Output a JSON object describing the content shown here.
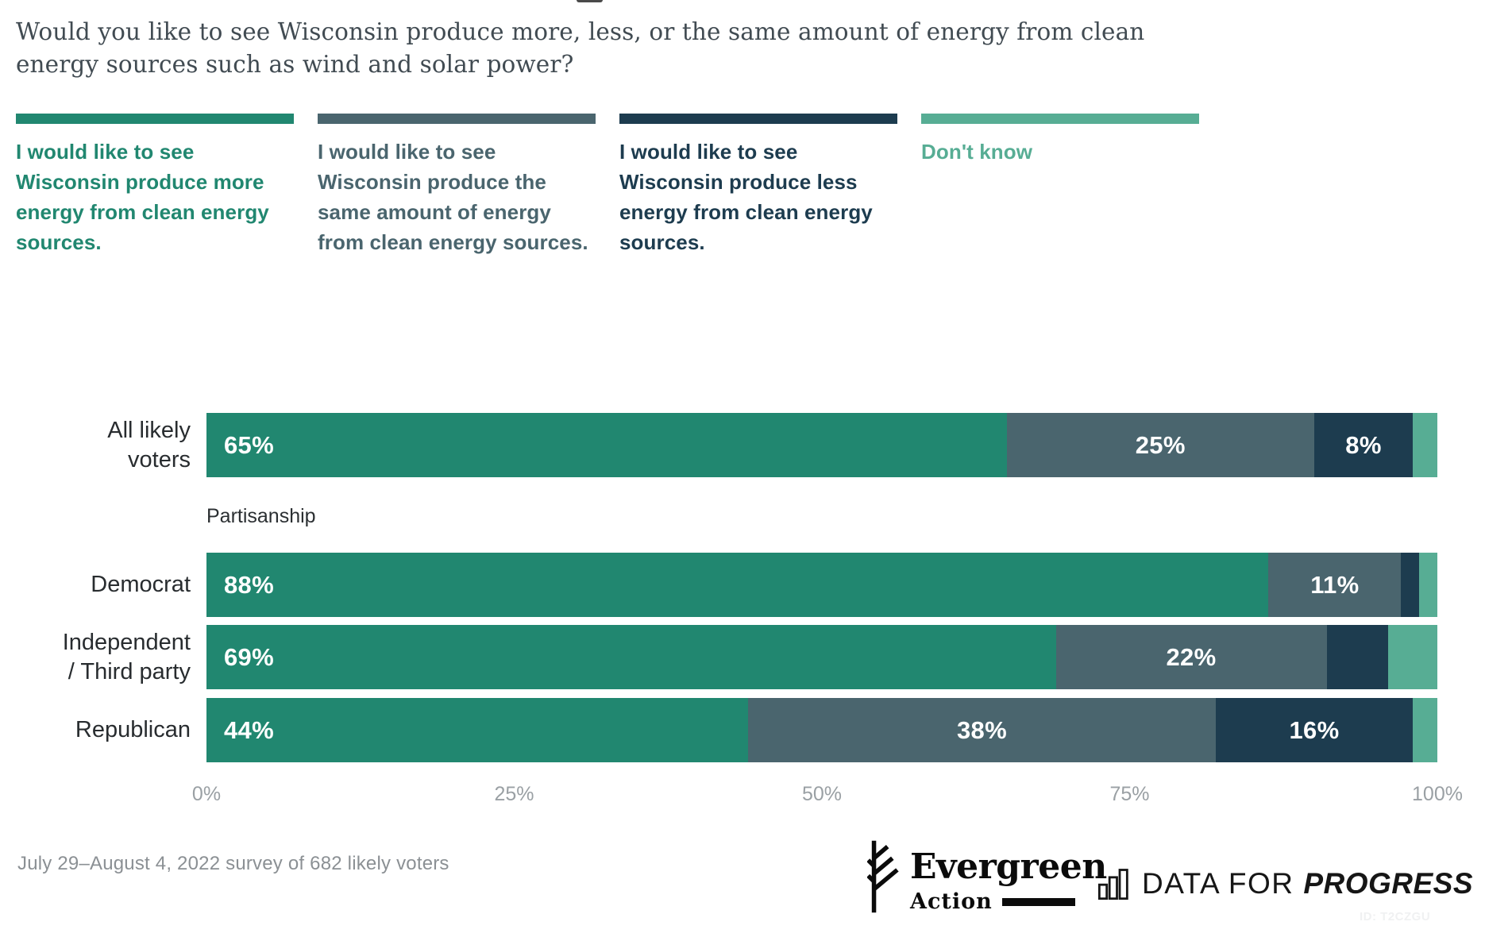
{
  "question": "Would you like to see Wisconsin produce more, less, or the same amount of energy from clean energy sources such as wind and solar power?",
  "legend": [
    {
      "label": "I would like to see Wisconsin produce more energy from clean energy sources.",
      "color": "#218770"
    },
    {
      "label": "I would like to see Wisconsin produce the same amount of energy from clean energy sources.",
      "color": "#4a656e"
    },
    {
      "label": "I would like to see Wisconsin produce less energy from clean energy sources.",
      "color": "#1d3c4f"
    },
    {
      "label": "Don't know",
      "color": "#57ad94"
    }
  ],
  "section_label": "Partisanship",
  "rows": [
    {
      "label": "All likely voters",
      "label_lines": [
        "All likely",
        "voters"
      ],
      "segments": [
        {
          "value": 65,
          "label": "65%"
        },
        {
          "value": 25,
          "label": "25%"
        },
        {
          "value": 8,
          "label": "8%"
        },
        {
          "value": 2,
          "label": ""
        }
      ]
    },
    {
      "label": "Democrat",
      "label_lines": [
        "Democrat"
      ],
      "segments": [
        {
          "value": 88,
          "label": "88%"
        },
        {
          "value": 11,
          "label": "11%"
        },
        {
          "value": 1.5,
          "label": ""
        },
        {
          "value": 1.5,
          "label": ""
        }
      ]
    },
    {
      "label": "Independent / Third party",
      "label_lines": [
        "Independent",
        "/ Third party"
      ],
      "segments": [
        {
          "value": 69,
          "label": "69%"
        },
        {
          "value": 22,
          "label": "22%"
        },
        {
          "value": 5,
          "label": ""
        },
        {
          "value": 4,
          "label": ""
        }
      ]
    },
    {
      "label": "Republican",
      "label_lines": [
        "Republican"
      ],
      "segments": [
        {
          "value": 44,
          "label": "44%"
        },
        {
          "value": 38,
          "label": "38%"
        },
        {
          "value": 16,
          "label": "16%"
        },
        {
          "value": 2,
          "label": ""
        }
      ]
    }
  ],
  "axis": {
    "ticks": [
      "0%",
      "25%",
      "50%",
      "75%",
      "100%"
    ]
  },
  "chart_data": {
    "type": "bar",
    "stacked": true,
    "orientation": "horizontal",
    "title": "Would you like to see Wisconsin produce more, less, or the same amount of energy from clean energy sources such as wind and solar power?",
    "categories": [
      "All likely voters",
      "Democrat",
      "Independent / Third party",
      "Republican"
    ],
    "series": [
      {
        "name": "I would like to see Wisconsin produce more energy from clean energy sources.",
        "color": "#218770",
        "values": [
          65,
          88,
          69,
          44
        ]
      },
      {
        "name": "I would like to see Wisconsin produce the same amount of energy from clean energy sources.",
        "color": "#4a656e",
        "values": [
          25,
          11,
          22,
          38
        ]
      },
      {
        "name": "I would like to see Wisconsin produce less energy from clean energy sources.",
        "color": "#1d3c4f",
        "values": [
          8,
          1.5,
          5,
          16
        ]
      },
      {
        "name": "Don't know",
        "color": "#57ad94",
        "values": [
          2,
          1.5,
          4,
          2
        ]
      }
    ],
    "xlim": [
      0,
      100
    ],
    "x_ticks": [
      "0%",
      "25%",
      "50%",
      "75%",
      "100%"
    ],
    "legend_position": "top",
    "group_note": "Partisanship",
    "value_label_rule": "segment percentages shown in white inside bars when segment is large enough"
  },
  "footer": {
    "note": "July 29–August 4, 2022 survey of 682 likely voters",
    "chart_id": "ID: T2CZGU"
  },
  "logos": {
    "evergreen": {
      "name": "Evergreen",
      "sub": "Action"
    },
    "dfp": {
      "light": "DATA FOR",
      "bold": "PROGRESS"
    }
  }
}
